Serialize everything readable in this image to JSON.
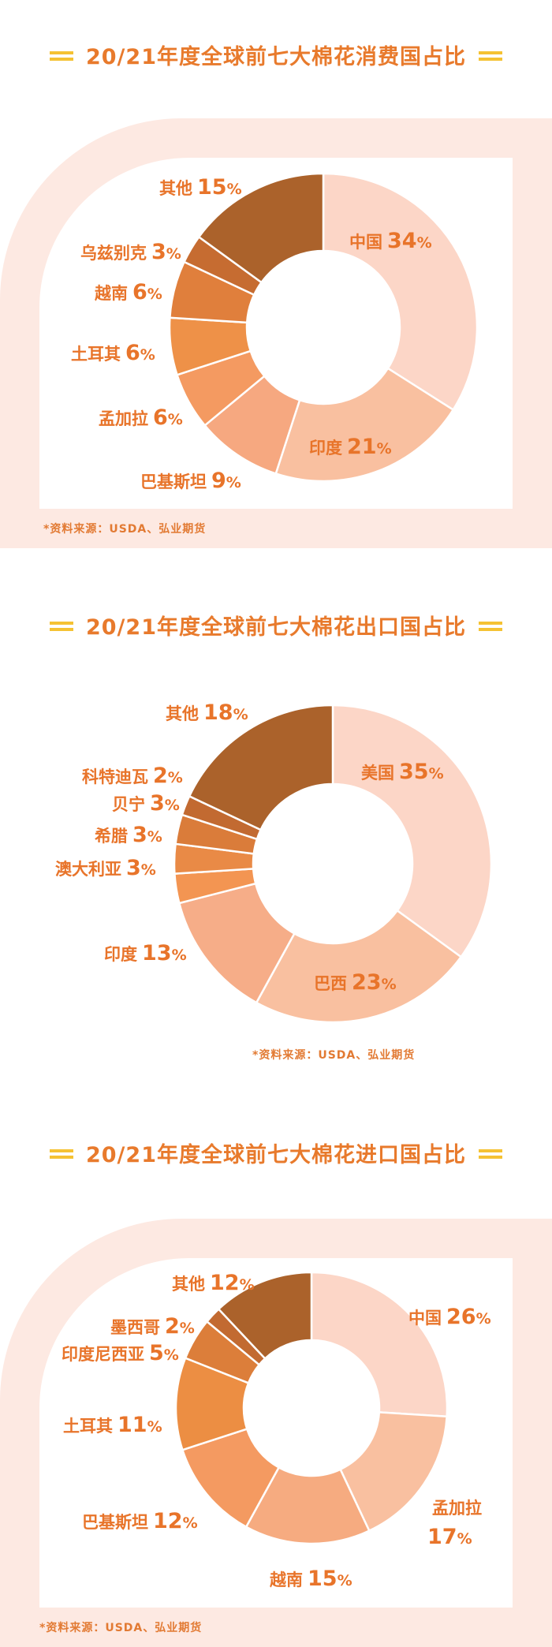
{
  "chart_data": [
    {
      "type": "pie",
      "title": "20/21年度全球前七大棉花消费国占比",
      "source": "*资料来源：USDA、弘业期货",
      "categories": [
        "中国",
        "印度",
        "巴基斯坦",
        "孟加拉",
        "土耳其",
        "越南",
        "乌兹别克",
        "其他"
      ],
      "values": [
        34,
        21,
        9,
        6,
        6,
        6,
        3,
        15
      ],
      "unit": "%",
      "colors": [
        "#fcd6c7",
        "#f9c0a0",
        "#f6a880",
        "#f49a61",
        "#ee9148",
        "#e07f3c",
        "#c66c31",
        "#ab622b"
      ]
    },
    {
      "type": "pie",
      "title": "20/21年度全球前七大棉花出口国占比",
      "source": "*资料来源：USDA、弘业期货",
      "categories": [
        "美国",
        "巴西",
        "印度",
        "澳大利亚",
        "希腊",
        "贝宁",
        "科特迪瓦",
        "其他"
      ],
      "values": [
        35,
        23,
        13,
        3,
        3,
        3,
        2,
        18
      ],
      "unit": "%",
      "colors": [
        "#fcd6c7",
        "#f9c0a0",
        "#f6ad88",
        "#f39552",
        "#e98a46",
        "#da7c3a",
        "#c26a31",
        "#ab622b"
      ]
    },
    {
      "type": "pie",
      "title": "20/21年度全球前七大棉花进口国占比",
      "source": "*资料来源：USDA、弘业期货",
      "categories": [
        "中国",
        "孟加拉",
        "越南",
        "巴基斯坦",
        "土耳其",
        "印度尼西亚",
        "墨西哥",
        "其他"
      ],
      "values": [
        26,
        17,
        15,
        12,
        11,
        5,
        2,
        12
      ],
      "unit": "%",
      "colors": [
        "#fcd6c7",
        "#f9c0a0",
        "#f6ab80",
        "#f49a61",
        "#ec8e43",
        "#dc7e3a",
        "#c26a31",
        "#ab622b"
      ]
    }
  ]
}
